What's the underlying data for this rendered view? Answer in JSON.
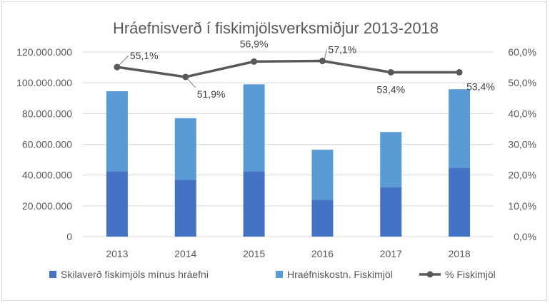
{
  "chart_data": {
    "type": "bar",
    "title": "Hráefnisverð í fiskimjölsverksmiðjur 2013-2018",
    "categories": [
      "2013",
      "2014",
      "2015",
      "2016",
      "2017",
      "2018"
    ],
    "series": [
      {
        "name": "Skilaverð fiskimjöls mínus hráefni",
        "type": "bar-stacked",
        "axis": "left",
        "color": "#4472C4",
        "values": [
          42500000,
          37000000,
          42500000,
          24000000,
          32000000,
          44800000
        ]
      },
      {
        "name": "Hraéfniskostn. Fiskimjöl",
        "type": "bar-stacked",
        "axis": "left",
        "color": "#5B9BD5",
        "values": [
          52000000,
          40000000,
          56500000,
          32500000,
          36000000,
          51000000
        ]
      },
      {
        "name": "% Fiskimjöl",
        "type": "line",
        "axis": "right",
        "color": "#595959",
        "values": [
          55.1,
          51.9,
          56.9,
          57.1,
          53.4,
          53.4
        ],
        "labels": [
          "55,1%",
          "51,9%",
          "56,9%",
          "57,1%",
          "53,4%",
          "53,4%"
        ]
      }
    ],
    "y_left": {
      "ylim": [
        0,
        120000000
      ],
      "ticks": [
        0,
        20000000,
        40000000,
        60000000,
        80000000,
        100000000,
        120000000
      ],
      "tick_labels": [
        "0",
        "20.000.000",
        "40.000.000",
        "60.000.000",
        "80.000.000",
        "100.000.000",
        "120.000.000"
      ]
    },
    "y_right": {
      "ylim": [
        0,
        60
      ],
      "ticks": [
        0,
        10,
        20,
        30,
        40,
        50,
        60
      ],
      "tick_labels": [
        "0,0%",
        "10,0%",
        "20,0%",
        "30,0%",
        "40,0%",
        "50,0%",
        "60,0%"
      ]
    },
    "grid": true,
    "legend_position": "bottom"
  }
}
